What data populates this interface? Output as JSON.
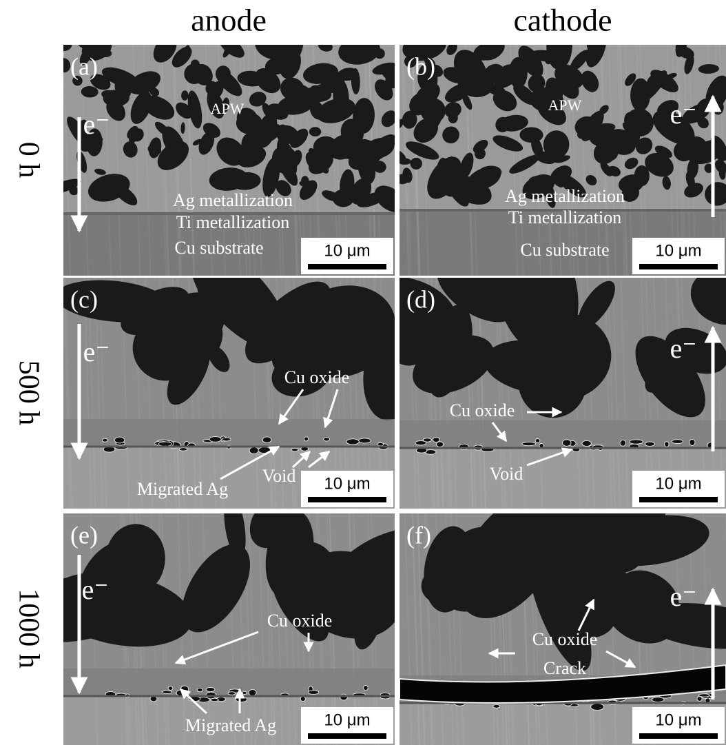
{
  "columns": [
    "anode",
    "cathode"
  ],
  "rows": [
    "0 h",
    "500 h",
    "1000 h"
  ],
  "panels": [
    {
      "label": "(a)",
      "electron": "e⁻",
      "scale_bar": "10 μm",
      "annotations": [
        "APW",
        "Ag metallization",
        "Ti metallization",
        "Cu substrate"
      ]
    },
    {
      "label": "(b)",
      "electron": "e⁻",
      "scale_bar": "10 μm",
      "annotations": [
        "APW",
        "Ag metallization",
        "Ti metallization",
        "Cu substrate"
      ]
    },
    {
      "label": "(c)",
      "electron": "e⁻",
      "scale_bar": "10 μm",
      "annotations": [
        "Cu oxide",
        "Void",
        "Migrated Ag"
      ]
    },
    {
      "label": "(d)",
      "electron": "e⁻",
      "scale_bar": "10 μm",
      "annotations": [
        "Cu oxide",
        "Void"
      ]
    },
    {
      "label": "(e)",
      "electron": "e⁻",
      "scale_bar": "10 μm",
      "annotations": [
        "Cu oxide",
        "Migrated Ag"
      ]
    },
    {
      "label": "(f)",
      "electron": "e⁻",
      "scale_bar": "10 μm",
      "annotations": [
        "Cu oxide",
        "Crack"
      ]
    }
  ]
}
